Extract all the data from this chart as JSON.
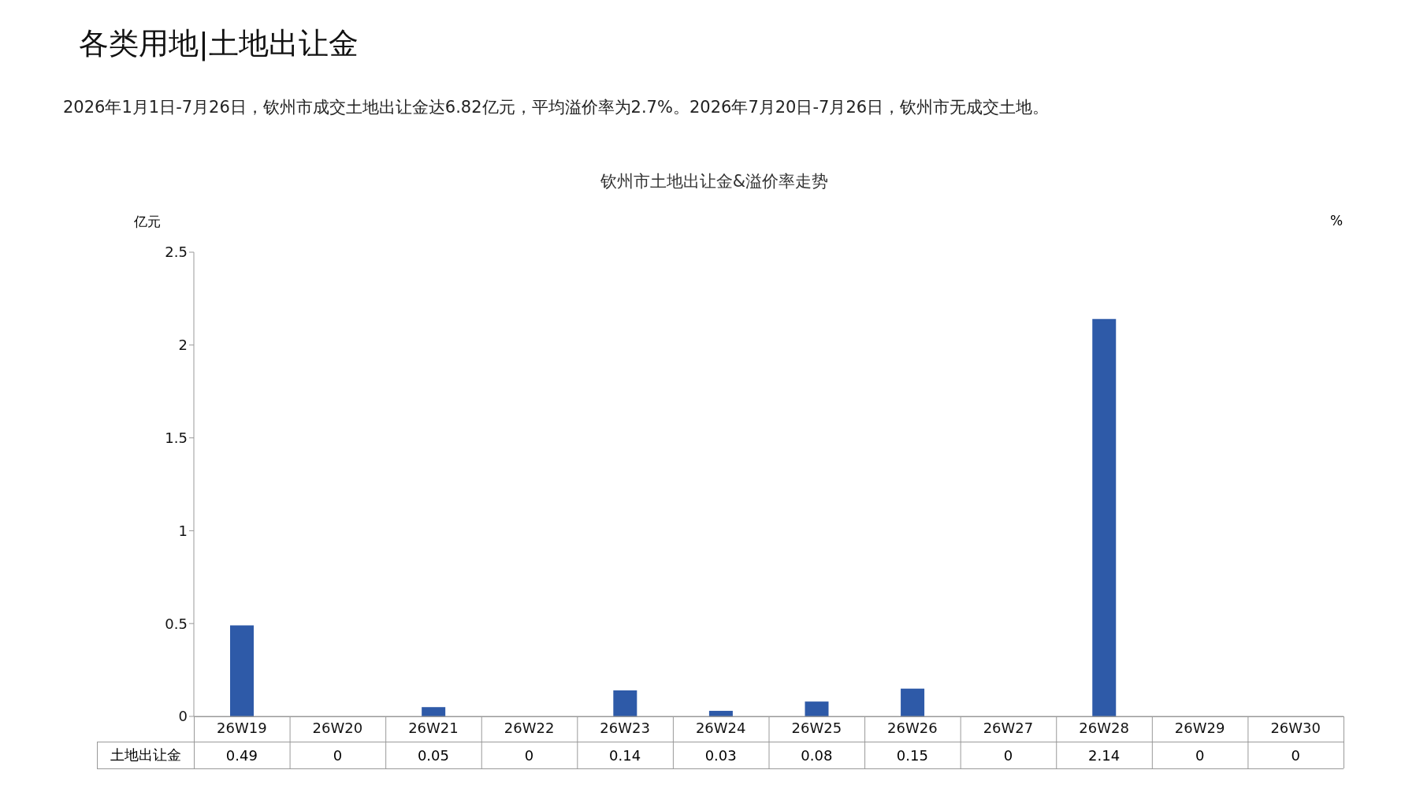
{
  "chart_data": {
    "type": "bar",
    "title": "各类用地|土地出让金",
    "subtitle": "2026年1月1日-7月26日，钦州市成交土地出让金达6.82亿元，平均溢价率为2.7%。2026年7月20日-7月26日，钦州市无成交土地。",
    "annotations": [
      "钦州市土地出让金&溢价率走势"
    ],
    "ylabel": "亿元",
    "y2label": "%",
    "categories": [
      "26W19",
      "26W20",
      "26W21",
      "26W22",
      "26W23",
      "26W24",
      "26W25",
      "26W26",
      "26W27",
      "26W28",
      "26W29",
      "26W30"
    ],
    "series": [
      {
        "name": "土地出让金",
        "color": "#2e5aa8",
        "values": [
          0.49,
          0,
          0.05,
          0,
          0.14,
          0.03,
          0.08,
          0.15,
          0,
          2.14,
          0,
          0
        ]
      }
    ],
    "ylim": [
      0,
      2.5
    ],
    "yticks": [
      0,
      0.5,
      1,
      1.5,
      2,
      2.5
    ],
    "data_labels": true
  }
}
